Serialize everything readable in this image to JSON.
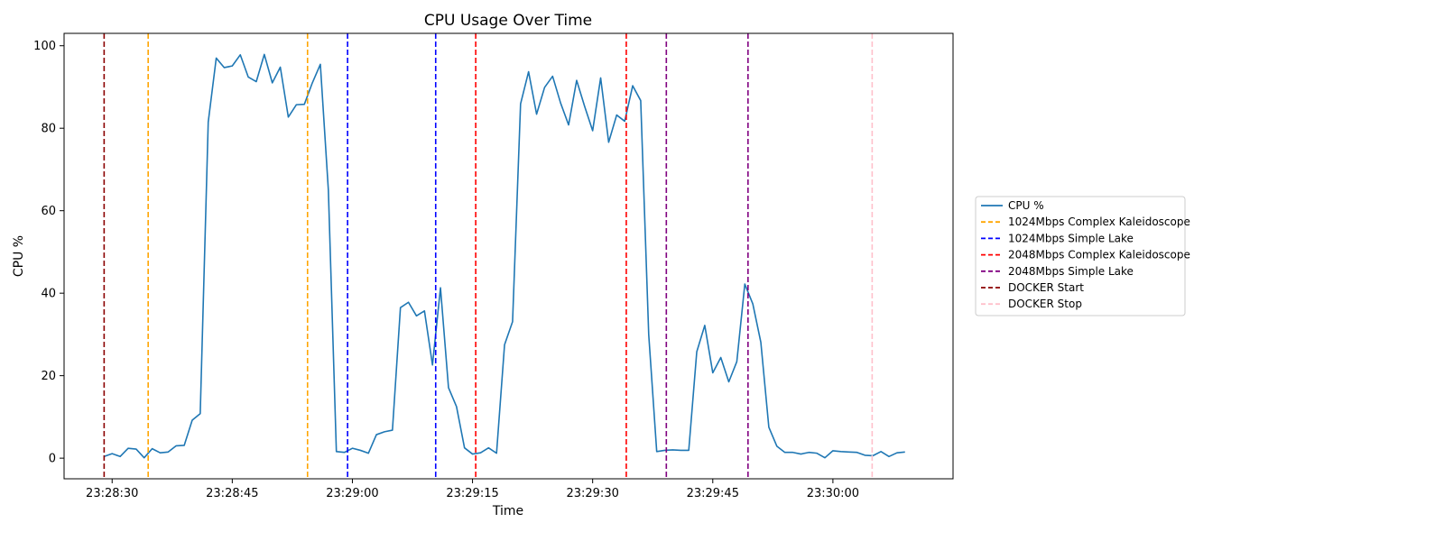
{
  "chart_data": {
    "type": "line",
    "title": "CPU Usage Over Time",
    "xlabel": "Time",
    "ylabel": "CPU %",
    "xlim": [
      "23:28:24",
      "23:30:15"
    ],
    "ylim": [
      -5,
      103
    ],
    "x_ticks": [
      "23:28:30",
      "23:28:45",
      "23:29:00",
      "23:29:15",
      "23:29:30",
      "23:29:45",
      "23:30:00"
    ],
    "y_ticks": [
      0,
      20,
      40,
      60,
      80,
      100
    ],
    "grid": false,
    "legend_position": "center right, outside plot",
    "series": [
      {
        "name": "CPU %",
        "color": "#1f77b4",
        "x": [
          "23:28:29",
          "23:28:30",
          "23:28:31",
          "23:28:32",
          "23:28:33",
          "23:28:34",
          "23:28:35",
          "23:28:36",
          "23:28:37",
          "23:28:38",
          "23:28:39",
          "23:28:40",
          "23:28:41",
          "23:28:42",
          "23:28:43",
          "23:28:44",
          "23:28:45",
          "23:28:46",
          "23:28:47",
          "23:28:48",
          "23:28:49",
          "23:28:50",
          "23:28:51",
          "23:28:52",
          "23:28:53",
          "23:28:54",
          "23:28:55",
          "23:28:56",
          "23:28:57",
          "23:28:58",
          "23:28:59",
          "23:29:00",
          "23:29:01",
          "23:29:02",
          "23:29:03",
          "23:29:04",
          "23:29:05",
          "23:29:06",
          "23:29:07",
          "23:29:08",
          "23:29:09",
          "23:29:10",
          "23:29:11",
          "23:29:12",
          "23:29:13",
          "23:29:14",
          "23:29:15",
          "23:29:16",
          "23:29:17",
          "23:29:18",
          "23:29:19",
          "23:29:20",
          "23:29:21",
          "23:29:22",
          "23:29:23",
          "23:29:24",
          "23:29:25",
          "23:29:26",
          "23:29:27",
          "23:29:28",
          "23:29:29",
          "23:29:30",
          "23:29:31",
          "23:29:32",
          "23:29:33",
          "23:29:34",
          "23:29:35",
          "23:29:36",
          "23:29:37",
          "23:29:38",
          "23:29:39",
          "23:29:40",
          "23:29:41",
          "23:29:42",
          "23:29:43",
          "23:29:44",
          "23:29:45",
          "23:29:46",
          "23:29:47",
          "23:29:48",
          "23:29:49",
          "23:29:50",
          "23:29:51",
          "23:29:52",
          "23:29:53",
          "23:29:54",
          "23:29:55",
          "23:29:56",
          "23:29:57",
          "23:29:58",
          "23:29:59",
          "23:30:00",
          "23:30:01",
          "23:30:02",
          "23:30:03",
          "23:30:04",
          "23:30:05",
          "23:30:06",
          "23:30:07",
          "23:30:08",
          "23:30:09"
        ],
        "values": [
          0.4,
          1.1,
          0.4,
          2.4,
          2.2,
          0.1,
          2.3,
          1.3,
          1.5,
          3.0,
          3.1,
          9.2,
          10.8,
          81.5,
          97.0,
          94.7,
          95.1,
          97.8,
          92.4,
          91.3,
          97.9,
          91.0,
          94.8,
          82.7,
          85.7,
          85.8,
          91.0,
          95.5,
          65.0,
          1.6,
          1.4,
          2.4,
          1.9,
          1.2,
          5.7,
          6.4,
          6.8,
          36.5,
          37.8,
          34.5,
          35.7,
          22.6,
          41.3,
          17.1,
          12.5,
          2.5,
          1.0,
          1.3,
          2.5,
          1.2,
          27.5,
          33.1,
          85.9,
          93.7,
          83.4,
          89.9,
          92.6,
          86.1,
          80.8,
          91.6,
          85.3,
          79.4,
          92.2,
          76.6,
          83.2,
          81.7,
          90.3,
          86.7,
          30.0,
          1.6,
          1.9,
          2.0,
          1.9,
          1.9,
          25.8,
          32.2,
          20.7,
          24.4,
          18.5,
          23.4,
          42.2,
          37.4,
          28.1,
          7.5,
          2.9,
          1.4,
          1.4,
          1.0,
          1.4,
          1.2,
          0.1,
          1.8,
          1.6,
          1.5,
          1.4,
          0.7,
          0.6,
          1.6,
          0.4,
          1.3,
          1.5
        ]
      }
    ],
    "vlines": [
      {
        "name": "1024Mbps Complex Kaleidoscope",
        "color": "#ffa500",
        "x": [
          "23:28:34.5",
          "23:28:54.4"
        ]
      },
      {
        "name": "1024Mbps Simple Lake",
        "color": "#0000ff",
        "x": [
          "23:28:59.4",
          "23:29:10.4"
        ]
      },
      {
        "name": "2048Mbps Complex Kaleidoscope",
        "color": "#ff0000",
        "x": [
          "23:29:15.4",
          "23:29:34.2"
        ]
      },
      {
        "name": "2048Mbps Simple Lake",
        "color": "#800080",
        "x": [
          "23:29:39.2",
          "23:29:49.4"
        ]
      },
      {
        "name": "DOCKER Start",
        "color": "#8b0000",
        "x": [
          "23:28:29"
        ]
      },
      {
        "name": "DOCKER Stop",
        "color": "#ffc0cb",
        "x": [
          "23:30:04.9"
        ]
      }
    ]
  }
}
